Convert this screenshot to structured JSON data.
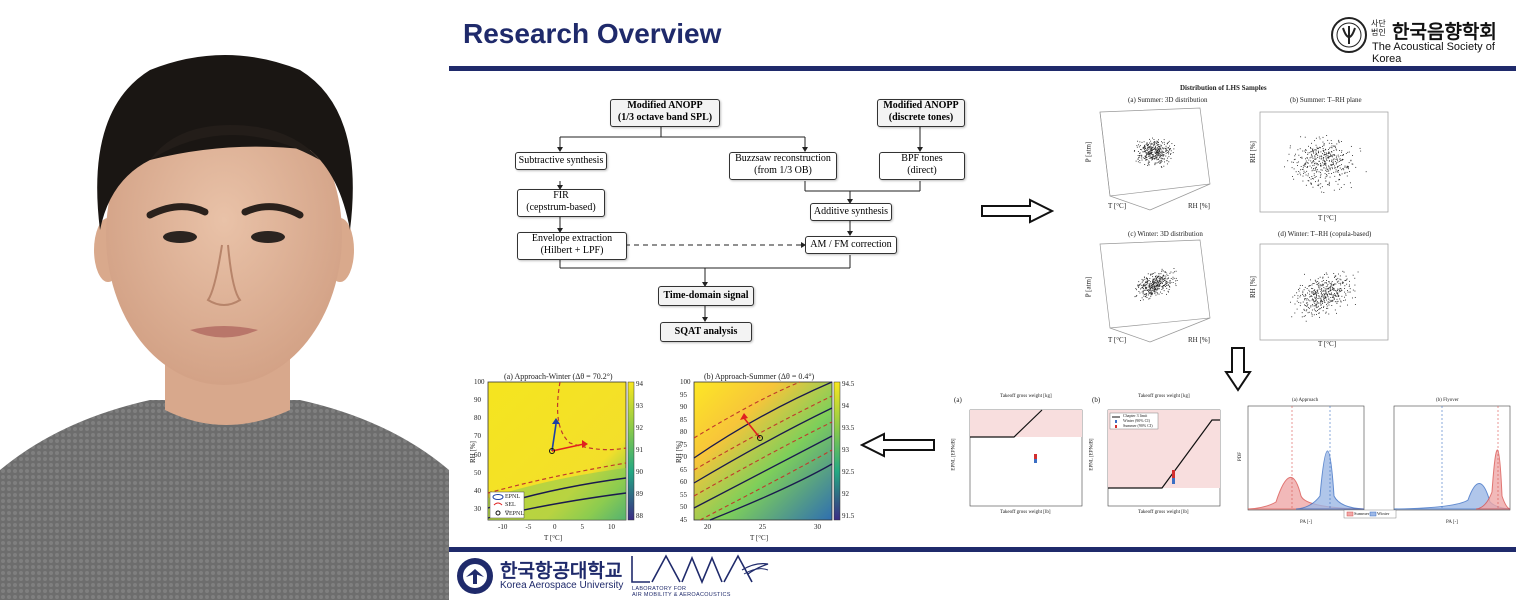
{
  "header": {
    "title": "Research Overview"
  },
  "society": {
    "prefix": "사단\n법인",
    "name_ko": "한국음향학회",
    "name_en": "The Acoustical Society of Korea"
  },
  "flowchart": {
    "nodes": {
      "anopp_band": "Modified ANOPP\n(1/3 octave band SPL)",
      "anopp_tones": "Modified ANOPP\n(discrete tones)",
      "subtractive": "Subtractive synthesis",
      "buzzsaw": "Buzzsaw reconstruction\n(from 1/3 OB)",
      "bpf": "BPF tones\n(direct)",
      "fir": "FIR\n(cepstrum-based)",
      "additive": "Additive synthesis",
      "envelope": "Envelope extraction\n(Hilbert + LPF)",
      "amfm": "AM / FM correction",
      "timedomain": "Time-domain signal",
      "sqat": "SQAT analysis"
    }
  },
  "lhs_figure": {
    "title": "Distribution of LHS Samples",
    "panels": [
      {
        "label": "(a) Summer: 3D distribution",
        "xlabel": "T [°C]",
        "ylabel": "RH [%]",
        "zlabel": "P [atm]"
      },
      {
        "label": "(b) Summer: T–RH plane",
        "xlabel": "T [°C]",
        "ylabel": "RH [%]"
      },
      {
        "label": "(c) Winter: 3D distribution",
        "xlabel": "T [°C]",
        "ylabel": "RH [%]",
        "zlabel": "P [atm]"
      },
      {
        "label": "(d) Winter: T–RH (copula-based)",
        "xlabel": "T [°C]",
        "ylabel": "RH [%]"
      }
    ]
  },
  "contour_figure": {
    "panels": [
      {
        "label": "(a) Approach-Winter (Δθ = 70.2°)",
        "xlabel": "T [°C]",
        "ylabel": "RH [%]",
        "yticks": [
          "100",
          "90",
          "80",
          "70",
          "60",
          "50",
          "40",
          "30"
        ],
        "xticks": [
          "-10",
          "-5",
          "0",
          "5",
          "10"
        ],
        "cbar": [
          "94",
          "93",
          "92",
          "91",
          "90",
          "89",
          "88"
        ],
        "legend": [
          "EPNL",
          "SEL",
          "∇EPNL"
        ]
      },
      {
        "label": "(b) Approach-Summer (Δθ = 0.4°)",
        "xlabel": "T [°C]",
        "ylabel": "RH [%]",
        "yticks": [
          "100",
          "95",
          "90",
          "85",
          "80",
          "75",
          "70",
          "65",
          "60",
          "55",
          "50",
          "45"
        ],
        "xticks": [
          "20",
          "25",
          "30"
        ],
        "cbar": [
          "94.5",
          "94",
          "93.5",
          "93",
          "92.5",
          "92",
          "91.5"
        ]
      }
    ]
  },
  "weight_figure": {
    "panels": [
      {
        "label": "(a)",
        "top_axis": "Takeoff gross weight [kg]",
        "xlabel": "Takeoff gross weight [lb]",
        "ylabel": "EPNL [EPNdB]"
      },
      {
        "label": "(b)",
        "top_axis": "Takeoff gross weight [kg]",
        "xlabel": "Takeoff gross weight [lb]",
        "ylabel": "EPNL [EPNdB]",
        "legend": [
          "Chapter 3 limit",
          "Winter (90% CI)",
          "Summer (90% CI)"
        ]
      }
    ]
  },
  "pdf_figure": {
    "panels": [
      {
        "label": "(a) Approach",
        "xlabel": "PA [-]",
        "ylabel": "PDF"
      },
      {
        "label": "(b) Flyover",
        "xlabel": "PA [-]"
      }
    ],
    "legend": [
      "Summer",
      "Winter"
    ],
    "colors": {
      "summer": "#d9534f",
      "winter": "#3b6fc4"
    }
  },
  "footer": {
    "university_ko": "한국항공대학교",
    "university_en": "Korea Aerospace University",
    "lab_name": "LAMA",
    "lab_full": "LABORATORY FOR\nAIR MOBILITY & AEROACOUSTICS"
  },
  "colors": {
    "navy": "#1f2a6b",
    "accent_red": "#d32f2f"
  }
}
